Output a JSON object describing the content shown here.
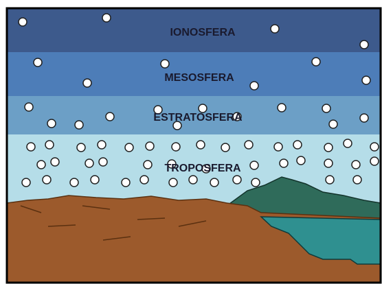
{
  "layers": [
    {
      "label": "IONOSFERA"
    },
    {
      "label": "MESOSFERA"
    },
    {
      "label": "ESTRATOSFERA"
    },
    {
      "label": "TROPOSFERA"
    }
  ]
}
